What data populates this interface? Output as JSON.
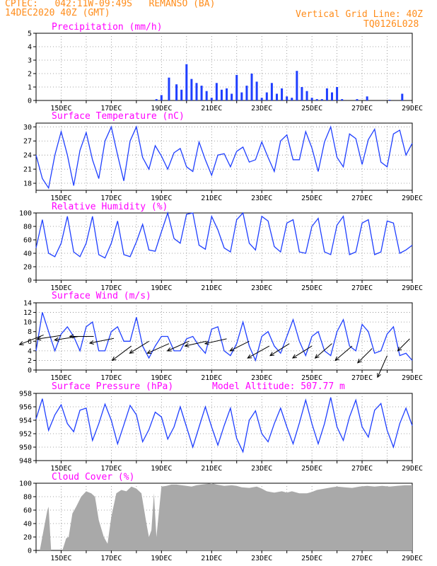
{
  "header": {
    "left_line1": "CPTEC:   042:11W-09:49S   REMANSO (BA)",
    "left_line2": "14DEC2020 40Z (GMT)",
    "right_line1": "Vertical Grid Line: 40Z",
    "right_line2": "TQ0126L028"
  },
  "colors": {
    "header": "#ff8c1a",
    "title": "#ff00ff",
    "line": "#1f3fff",
    "bar": "#1f3fff",
    "cloud": "#a9a9a9",
    "wind_arrow": "#000000"
  },
  "x_ticks": [
    "15DEC",
    "17DEC",
    "19DEC",
    "21DEC",
    "23DEC",
    "25DEC",
    "27DEC",
    "29DEC"
  ],
  "chart_data": [
    {
      "id": "precip",
      "type": "bar",
      "title": "Precipitation (mm/h)",
      "ylim": [
        0,
        5
      ],
      "yticks": [
        0,
        1,
        2,
        3,
        4,
        5
      ],
      "x": [
        4.8,
        5.0,
        5.3,
        5.6,
        5.8,
        6.0,
        6.2,
        6.4,
        6.6,
        6.8,
        7.0,
        7.2,
        7.4,
        7.6,
        7.8,
        8.0,
        8.2,
        8.4,
        8.6,
        8.8,
        9.0,
        9.2,
        9.4,
        9.6,
        9.8,
        10.0,
        10.2,
        10.4,
        10.6,
        10.8,
        11.0,
        11.2,
        11.4,
        11.6,
        11.8,
        12.0,
        12.2,
        12.8,
        13.2,
        14.1,
        14.6
      ],
      "values": [
        0.1,
        0.4,
        1.7,
        1.2,
        0.8,
        2.7,
        1.6,
        1.3,
        1.1,
        0.7,
        0.2,
        1.3,
        0.8,
        0.9,
        0.5,
        1.9,
        0.6,
        1.1,
        2.0,
        1.4,
        0.2,
        0.6,
        1.3,
        0.5,
        0.9,
        0.3,
        0.2,
        2.2,
        1.0,
        0.7,
        0.2,
        0.1,
        0.1,
        0.9,
        0.6,
        1.0,
        0.1,
        0.1,
        0.3,
        0.05,
        0.5
      ]
    },
    {
      "id": "temp",
      "type": "line",
      "title": "Surface Temperature (nC)",
      "ylim": [
        16.5,
        30.8
      ],
      "yticks": [
        18,
        21,
        24,
        27,
        30
      ],
      "x": [
        0.0,
        0.25,
        0.5,
        0.75,
        1.0,
        1.25,
        1.5,
        1.75,
        2.0,
        2.25,
        2.5,
        2.75,
        3.0,
        3.25,
        3.5,
        3.75,
        4.0,
        4.25,
        4.5,
        4.75,
        5.0,
        5.25,
        5.5,
        5.75,
        6.0,
        6.25,
        6.5,
        6.75,
        7.0,
        7.25,
        7.5,
        7.75,
        8.0,
        8.25,
        8.5,
        8.75,
        9.0,
        9.25,
        9.5,
        9.75,
        10.0,
        10.25,
        10.5,
        10.75,
        11.0,
        11.25,
        11.5,
        11.75,
        12.0,
        12.25,
        12.5,
        12.75,
        13.0,
        13.25,
        13.5,
        13.75,
        14.0,
        14.25,
        14.5,
        14.75,
        15.0
      ],
      "values": [
        24.0,
        19.0,
        17.0,
        24.0,
        29.0,
        24.0,
        17.5,
        25.0,
        28.8,
        23.0,
        19.0,
        27.0,
        30.0,
        24.0,
        18.5,
        27.0,
        30.0,
        23.5,
        21.0,
        26.0,
        23.8,
        21.0,
        24.5,
        25.4,
        21.5,
        20.5,
        26.8,
        23.0,
        19.7,
        24.0,
        24.3,
        21.5,
        24.8,
        25.7,
        22.5,
        23.0,
        26.8,
        23.5,
        20.5,
        27.0,
        28.3,
        23.0,
        23.0,
        29.0,
        25.5,
        20.5,
        26.8,
        30.0,
        23.5,
        21.5,
        28.5,
        27.5,
        22.0,
        27.3,
        29.5,
        22.5,
        21.5,
        28.5,
        29.3,
        24.0,
        26.5
      ]
    },
    {
      "id": "rh",
      "type": "line",
      "title": "Relative Humidity (%)",
      "ylim": [
        0,
        100
      ],
      "yticks": [
        0,
        20,
        40,
        60,
        80,
        100
      ],
      "x": [
        0.0,
        0.25,
        0.5,
        0.75,
        1.0,
        1.25,
        1.5,
        1.75,
        2.0,
        2.25,
        2.5,
        2.75,
        3.0,
        3.25,
        3.5,
        3.75,
        4.0,
        4.25,
        4.5,
        4.75,
        5.0,
        5.25,
        5.5,
        5.75,
        6.0,
        6.25,
        6.5,
        6.75,
        7.0,
        7.25,
        7.5,
        7.75,
        8.0,
        8.25,
        8.5,
        8.75,
        9.0,
        9.25,
        9.5,
        9.75,
        10.0,
        10.25,
        10.5,
        10.75,
        11.0,
        11.25,
        11.5,
        11.75,
        12.0,
        12.25,
        12.5,
        12.75,
        13.0,
        13.25,
        13.5,
        13.75,
        14.0,
        14.25,
        14.5,
        14.75,
        15.0
      ],
      "values": [
        48,
        90,
        40,
        35,
        55,
        95,
        42,
        35,
        55,
        95,
        38,
        33,
        55,
        88,
        38,
        35,
        57,
        83,
        45,
        43,
        72,
        100,
        62,
        55,
        98,
        100,
        52,
        46,
        95,
        75,
        48,
        42,
        90,
        100,
        55,
        45,
        95,
        88,
        50,
        42,
        85,
        90,
        42,
        40,
        80,
        92,
        42,
        38,
        82,
        95,
        38,
        42,
        85,
        90,
        38,
        42,
        88,
        85,
        40,
        45,
        52
      ]
    },
    {
      "id": "wind",
      "type": "line",
      "title": "Surface Wind (m/s)",
      "ylim": [
        0,
        14
      ],
      "yticks": [
        0,
        2,
        4,
        6,
        8,
        10,
        12,
        14
      ],
      "x": [
        0.0,
        0.25,
        0.5,
        0.75,
        1.0,
        1.25,
        1.5,
        1.75,
        2.0,
        2.25,
        2.5,
        2.75,
        3.0,
        3.25,
        3.5,
        3.75,
        4.0,
        4.25,
        4.5,
        4.75,
        5.0,
        5.25,
        5.5,
        5.75,
        6.0,
        6.25,
        6.5,
        6.75,
        7.0,
        7.25,
        7.5,
        7.75,
        8.0,
        8.25,
        8.5,
        8.75,
        9.0,
        9.25,
        9.5,
        9.75,
        10.0,
        10.25,
        10.5,
        10.75,
        11.0,
        11.25,
        11.5,
        11.75,
        12.0,
        12.25,
        12.5,
        12.75,
        13.0,
        13.25,
        13.5,
        13.75,
        14.0,
        14.25,
        14.5,
        14.75,
        15.0
      ],
      "values": [
        4,
        12,
        8,
        4,
        7.5,
        9,
        7,
        4,
        9,
        10,
        4,
        4,
        8,
        9,
        6,
        6,
        11,
        5,
        2.5,
        5,
        7,
        7,
        4,
        4,
        6.5,
        7,
        5,
        3.5,
        8.5,
        9,
        4,
        3,
        5.5,
        10,
        5,
        2,
        7,
        8,
        5,
        3.5,
        7,
        10.5,
        6,
        3,
        7,
        8,
        4,
        3,
        8,
        10.5,
        5,
        4,
        9.5,
        8,
        3.5,
        4,
        7.5,
        9,
        3,
        3.5,
        2
      ],
      "arrows": [
        {
          "x": 0.3,
          "y": 7.3,
          "u": -1.0,
          "v": -0.4
        },
        {
          "x": 1.0,
          "y": 7.2,
          "u": -1.0,
          "v": -0.15
        },
        {
          "x": 1.7,
          "y": 7.0,
          "u": -1.0,
          "v": -0.15
        },
        {
          "x": 2.3,
          "y": 7.0,
          "u": -1.0,
          "v": 0.0
        },
        {
          "x": 3.1,
          "y": 6.6,
          "u": -1.0,
          "v": -0.2
        },
        {
          "x": 3.8,
          "y": 5.0,
          "u": -0.8,
          "v": -0.6
        },
        {
          "x": 4.5,
          "y": 6.0,
          "u": -0.8,
          "v": -0.5
        },
        {
          "x": 5.3,
          "y": 5.5,
          "u": -0.9,
          "v": -0.4
        },
        {
          "x": 6.1,
          "y": 6.0,
          "u": -0.9,
          "v": -0.4
        },
        {
          "x": 6.8,
          "y": 6.0,
          "u": -0.9,
          "v": -0.2
        },
        {
          "x": 7.6,
          "y": 6.5,
          "u": -0.9,
          "v": -0.2
        },
        {
          "x": 8.5,
          "y": 6.0,
          "u": -0.8,
          "v": -0.4
        },
        {
          "x": 9.3,
          "y": 5.0,
          "u": -0.9,
          "v": -0.5
        },
        {
          "x": 10.1,
          "y": 5.5,
          "u": -0.8,
          "v": -0.5
        },
        {
          "x": 11.0,
          "y": 5.0,
          "u": -0.8,
          "v": -0.5
        },
        {
          "x": 11.8,
          "y": 5.5,
          "u": -0.7,
          "v": -0.6
        },
        {
          "x": 12.6,
          "y": 5.0,
          "u": -0.7,
          "v": -0.6
        },
        {
          "x": 13.4,
          "y": 4.5,
          "u": -0.6,
          "v": -0.6
        },
        {
          "x": 14.0,
          "y": 3.0,
          "u": -0.4,
          "v": -0.9
        },
        {
          "x": 14.9,
          "y": 6.5,
          "u": -0.5,
          "v": -0.5
        }
      ]
    },
    {
      "id": "pressure",
      "type": "line",
      "title": "Surface Pressure (hPa)",
      "subtitle": "Model Altitude: 507.77 m",
      "ylim": [
        948,
        958
      ],
      "yticks": [
        948,
        950,
        952,
        954,
        956,
        958
      ],
      "x": [
        0.0,
        0.25,
        0.5,
        0.75,
        1.0,
        1.25,
        1.5,
        1.75,
        2.0,
        2.25,
        2.5,
        2.75,
        3.0,
        3.25,
        3.5,
        3.75,
        4.0,
        4.25,
        4.5,
        4.75,
        5.0,
        5.25,
        5.5,
        5.75,
        6.0,
        6.25,
        6.5,
        6.75,
        7.0,
        7.25,
        7.5,
        7.75,
        8.0,
        8.25,
        8.5,
        8.75,
        9.0,
        9.25,
        9.5,
        9.75,
        10.0,
        10.25,
        10.5,
        10.75,
        11.0,
        11.25,
        11.5,
        11.75,
        12.0,
        12.25,
        12.5,
        12.75,
        13.0,
        13.25,
        13.5,
        13.75,
        14.0,
        14.25,
        14.5,
        14.75,
        15.0
      ],
      "values": [
        954.2,
        957.2,
        952.5,
        954.8,
        956.3,
        953.5,
        952.3,
        955.5,
        955.8,
        951.0,
        953.5,
        956.4,
        954.0,
        950.5,
        953.3,
        956.2,
        954.8,
        950.8,
        952.6,
        955.2,
        954.5,
        951.2,
        953.0,
        956.0,
        953.0,
        950.0,
        953.0,
        956.0,
        953.0,
        950.3,
        953.2,
        955.8,
        951.3,
        949.3,
        954.0,
        955.4,
        952.0,
        950.8,
        953.5,
        955.8,
        953.0,
        950.5,
        953.6,
        957.0,
        953.5,
        950.5,
        953.5,
        957.4,
        953.0,
        951.0,
        954.5,
        957.0,
        953.0,
        951.5,
        955.5,
        956.5,
        952.5,
        950.0,
        953.5,
        955.8,
        953.2
      ]
    },
    {
      "id": "cloud",
      "type": "area",
      "title": "Cloud Cover (%)",
      "ylim": [
        0,
        100
      ],
      "yticks": [
        0,
        20,
        40,
        60,
        80,
        100
      ],
      "x": [
        0.0,
        0.15,
        0.3,
        0.45,
        0.5,
        0.6,
        0.75,
        0.9,
        1.05,
        1.2,
        1.3,
        1.45,
        1.6,
        1.8,
        2.0,
        2.2,
        2.35,
        2.5,
        2.7,
        2.85,
        3.0,
        3.2,
        3.4,
        3.6,
        3.8,
        4.0,
        4.2,
        4.4,
        4.5,
        4.6,
        4.7,
        4.8,
        5.0,
        5.2,
        5.4,
        5.6,
        5.8,
        6.0,
        6.2,
        6.4,
        6.6,
        6.8,
        7.0,
        7.2,
        7.5,
        7.8,
        8.0,
        8.2,
        8.5,
        8.8,
        9.0,
        9.2,
        9.5,
        9.8,
        10.0,
        10.2,
        10.5,
        10.8,
        11.0,
        11.2,
        11.5,
        11.8,
        12.0,
        12.3,
        12.6,
        12.9,
        13.2,
        13.5,
        13.8,
        14.1,
        14.4,
        14.7,
        15.0
      ],
      "values": [
        0,
        0,
        30,
        60,
        65,
        0,
        0,
        0,
        0,
        18,
        20,
        55,
        65,
        80,
        88,
        85,
        80,
        45,
        20,
        10,
        50,
        85,
        90,
        88,
        95,
        92,
        85,
        40,
        20,
        30,
        85,
        20,
        95,
        96,
        98,
        98,
        97,
        96,
        95,
        97,
        98,
        99,
        100,
        98,
        96,
        97,
        96,
        94,
        93,
        95,
        92,
        88,
        86,
        88,
        86,
        88,
        85,
        85,
        87,
        90,
        92,
        94,
        95,
        94,
        93,
        95,
        96,
        95,
        96,
        95,
        96,
        97,
        97
      ]
    }
  ]
}
